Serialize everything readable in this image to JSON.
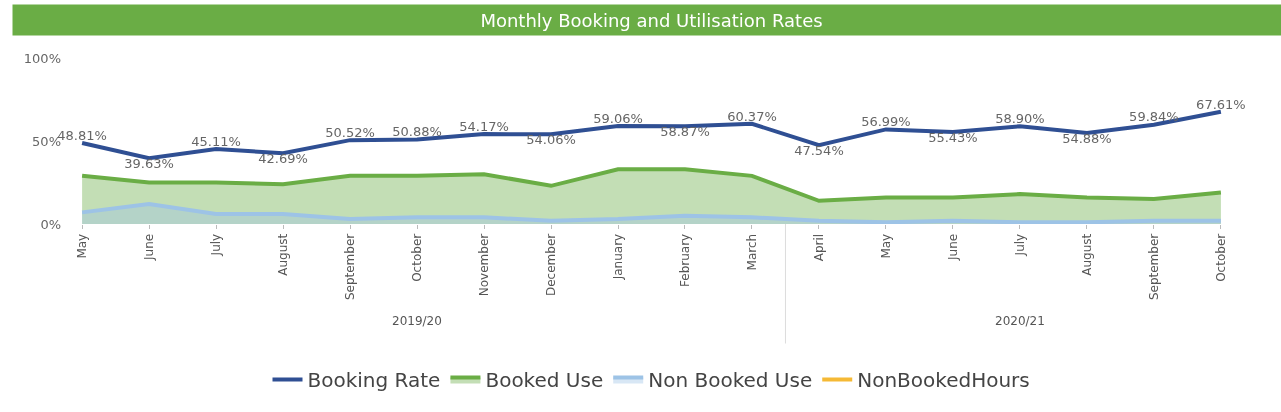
{
  "chart_data": {
    "type": "line",
    "title": "Monthly Booking and Utilisation Rates",
    "categories": [
      "May",
      "June",
      "July",
      "August",
      "September",
      "October",
      "November",
      "December",
      "January",
      "February",
      "March",
      "April",
      "May",
      "June",
      "July",
      "August",
      "September",
      "October"
    ],
    "series": [
      {
        "name": "Booking Rate",
        "color": "#2f4f93",
        "values": [
          48.81,
          39.63,
          45.11,
          42.69,
          50.52,
          50.88,
          54.17,
          54.06,
          59.06,
          58.87,
          60.37,
          47.54,
          56.99,
          55.43,
          58.9,
          54.88,
          59.84,
          67.61
        ],
        "value_labels": [
          "48.81%",
          "39.63%",
          "45.11%",
          "42.69%",
          "50.52%",
          "50.88%",
          "54.17%",
          "54.06%",
          "59.06%",
          "58.87%",
          "60.37%",
          "47.54%",
          "56.99%",
          "55.43%",
          "58.90%",
          "54.88%",
          "59.84%",
          "67.61%"
        ]
      },
      {
        "name": "Booked Use",
        "type": "area",
        "color": "#6aad45",
        "values": [
          29,
          25,
          25,
          24,
          29,
          29,
          30,
          23,
          33,
          33,
          29,
          14,
          16,
          16,
          18,
          16,
          15,
          19
        ]
      },
      {
        "name": "Non Booked Use",
        "type": "area",
        "color": "#9dc3e6",
        "values": [
          7,
          12,
          6,
          6,
          3,
          4,
          4,
          2,
          3,
          5,
          4,
          2,
          1,
          2,
          1,
          1,
          2,
          2
        ]
      },
      {
        "name": "NonBookedHours",
        "color": "#f5b935",
        "values": [
          null,
          null,
          null,
          null,
          null,
          null,
          null,
          null,
          null,
          null,
          null,
          null,
          null,
          null,
          null,
          null,
          null,
          null
        ]
      }
    ],
    "ylim": [
      0,
      100
    ],
    "yticks": [
      {
        "value": 0,
        "label": "0%"
      },
      {
        "value": 50,
        "label": "50%"
      },
      {
        "value": 100,
        "label": "100%"
      }
    ],
    "legend": "bottom",
    "annotations": [
      "2019/20",
      "2020/21"
    ]
  }
}
